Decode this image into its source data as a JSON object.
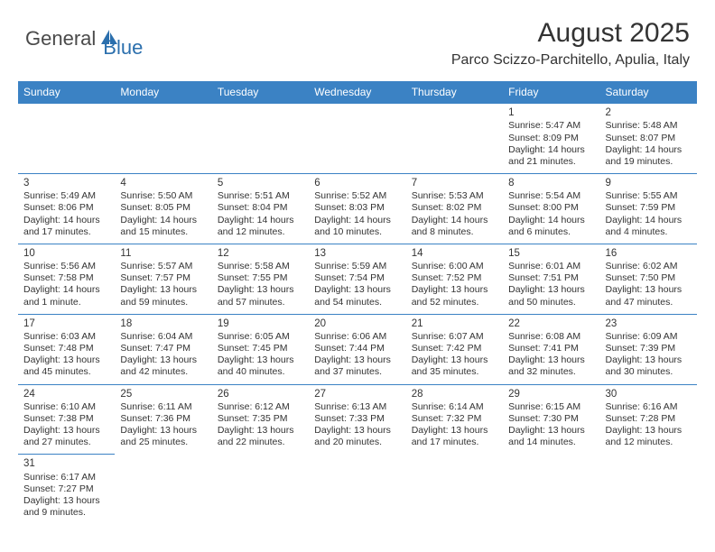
{
  "brand": {
    "word1": "General",
    "word2": "Blue",
    "word1_color": "#4a4a4a",
    "word2_color": "#2b6fad",
    "icon_fill": "#2b6fad"
  },
  "title": "August 2025",
  "location": "Parco Scizzo-Parchitello, Apulia, Italy",
  "colors": {
    "header_bg": "#3b82c4",
    "header_text": "#ffffff",
    "border": "#3b82c4",
    "body_text": "#333333",
    "page_bg": "#ffffff"
  },
  "weekdays": [
    "Sunday",
    "Monday",
    "Tuesday",
    "Wednesday",
    "Thursday",
    "Friday",
    "Saturday"
  ],
  "weeks": [
    [
      null,
      null,
      null,
      null,
      null,
      {
        "day": "1",
        "sunrise": "Sunrise: 5:47 AM",
        "sunset": "Sunset: 8:09 PM",
        "daylight1": "Daylight: 14 hours",
        "daylight2": "and 21 minutes."
      },
      {
        "day": "2",
        "sunrise": "Sunrise: 5:48 AM",
        "sunset": "Sunset: 8:07 PM",
        "daylight1": "Daylight: 14 hours",
        "daylight2": "and 19 minutes."
      }
    ],
    [
      {
        "day": "3",
        "sunrise": "Sunrise: 5:49 AM",
        "sunset": "Sunset: 8:06 PM",
        "daylight1": "Daylight: 14 hours",
        "daylight2": "and 17 minutes."
      },
      {
        "day": "4",
        "sunrise": "Sunrise: 5:50 AM",
        "sunset": "Sunset: 8:05 PM",
        "daylight1": "Daylight: 14 hours",
        "daylight2": "and 15 minutes."
      },
      {
        "day": "5",
        "sunrise": "Sunrise: 5:51 AM",
        "sunset": "Sunset: 8:04 PM",
        "daylight1": "Daylight: 14 hours",
        "daylight2": "and 12 minutes."
      },
      {
        "day": "6",
        "sunrise": "Sunrise: 5:52 AM",
        "sunset": "Sunset: 8:03 PM",
        "daylight1": "Daylight: 14 hours",
        "daylight2": "and 10 minutes."
      },
      {
        "day": "7",
        "sunrise": "Sunrise: 5:53 AM",
        "sunset": "Sunset: 8:02 PM",
        "daylight1": "Daylight: 14 hours",
        "daylight2": "and 8 minutes."
      },
      {
        "day": "8",
        "sunrise": "Sunrise: 5:54 AM",
        "sunset": "Sunset: 8:00 PM",
        "daylight1": "Daylight: 14 hours",
        "daylight2": "and 6 minutes."
      },
      {
        "day": "9",
        "sunrise": "Sunrise: 5:55 AM",
        "sunset": "Sunset: 7:59 PM",
        "daylight1": "Daylight: 14 hours",
        "daylight2": "and 4 minutes."
      }
    ],
    [
      {
        "day": "10",
        "sunrise": "Sunrise: 5:56 AM",
        "sunset": "Sunset: 7:58 PM",
        "daylight1": "Daylight: 14 hours",
        "daylight2": "and 1 minute."
      },
      {
        "day": "11",
        "sunrise": "Sunrise: 5:57 AM",
        "sunset": "Sunset: 7:57 PM",
        "daylight1": "Daylight: 13 hours",
        "daylight2": "and 59 minutes."
      },
      {
        "day": "12",
        "sunrise": "Sunrise: 5:58 AM",
        "sunset": "Sunset: 7:55 PM",
        "daylight1": "Daylight: 13 hours",
        "daylight2": "and 57 minutes."
      },
      {
        "day": "13",
        "sunrise": "Sunrise: 5:59 AM",
        "sunset": "Sunset: 7:54 PM",
        "daylight1": "Daylight: 13 hours",
        "daylight2": "and 54 minutes."
      },
      {
        "day": "14",
        "sunrise": "Sunrise: 6:00 AM",
        "sunset": "Sunset: 7:52 PM",
        "daylight1": "Daylight: 13 hours",
        "daylight2": "and 52 minutes."
      },
      {
        "day": "15",
        "sunrise": "Sunrise: 6:01 AM",
        "sunset": "Sunset: 7:51 PM",
        "daylight1": "Daylight: 13 hours",
        "daylight2": "and 50 minutes."
      },
      {
        "day": "16",
        "sunrise": "Sunrise: 6:02 AM",
        "sunset": "Sunset: 7:50 PM",
        "daylight1": "Daylight: 13 hours",
        "daylight2": "and 47 minutes."
      }
    ],
    [
      {
        "day": "17",
        "sunrise": "Sunrise: 6:03 AM",
        "sunset": "Sunset: 7:48 PM",
        "daylight1": "Daylight: 13 hours",
        "daylight2": "and 45 minutes."
      },
      {
        "day": "18",
        "sunrise": "Sunrise: 6:04 AM",
        "sunset": "Sunset: 7:47 PM",
        "daylight1": "Daylight: 13 hours",
        "daylight2": "and 42 minutes."
      },
      {
        "day": "19",
        "sunrise": "Sunrise: 6:05 AM",
        "sunset": "Sunset: 7:45 PM",
        "daylight1": "Daylight: 13 hours",
        "daylight2": "and 40 minutes."
      },
      {
        "day": "20",
        "sunrise": "Sunrise: 6:06 AM",
        "sunset": "Sunset: 7:44 PM",
        "daylight1": "Daylight: 13 hours",
        "daylight2": "and 37 minutes."
      },
      {
        "day": "21",
        "sunrise": "Sunrise: 6:07 AM",
        "sunset": "Sunset: 7:42 PM",
        "daylight1": "Daylight: 13 hours",
        "daylight2": "and 35 minutes."
      },
      {
        "day": "22",
        "sunrise": "Sunrise: 6:08 AM",
        "sunset": "Sunset: 7:41 PM",
        "daylight1": "Daylight: 13 hours",
        "daylight2": "and 32 minutes."
      },
      {
        "day": "23",
        "sunrise": "Sunrise: 6:09 AM",
        "sunset": "Sunset: 7:39 PM",
        "daylight1": "Daylight: 13 hours",
        "daylight2": "and 30 minutes."
      }
    ],
    [
      {
        "day": "24",
        "sunrise": "Sunrise: 6:10 AM",
        "sunset": "Sunset: 7:38 PM",
        "daylight1": "Daylight: 13 hours",
        "daylight2": "and 27 minutes."
      },
      {
        "day": "25",
        "sunrise": "Sunrise: 6:11 AM",
        "sunset": "Sunset: 7:36 PM",
        "daylight1": "Daylight: 13 hours",
        "daylight2": "and 25 minutes."
      },
      {
        "day": "26",
        "sunrise": "Sunrise: 6:12 AM",
        "sunset": "Sunset: 7:35 PM",
        "daylight1": "Daylight: 13 hours",
        "daylight2": "and 22 minutes."
      },
      {
        "day": "27",
        "sunrise": "Sunrise: 6:13 AM",
        "sunset": "Sunset: 7:33 PM",
        "daylight1": "Daylight: 13 hours",
        "daylight2": "and 20 minutes."
      },
      {
        "day": "28",
        "sunrise": "Sunrise: 6:14 AM",
        "sunset": "Sunset: 7:32 PM",
        "daylight1": "Daylight: 13 hours",
        "daylight2": "and 17 minutes."
      },
      {
        "day": "29",
        "sunrise": "Sunrise: 6:15 AM",
        "sunset": "Sunset: 7:30 PM",
        "daylight1": "Daylight: 13 hours",
        "daylight2": "and 14 minutes."
      },
      {
        "day": "30",
        "sunrise": "Sunrise: 6:16 AM",
        "sunset": "Sunset: 7:28 PM",
        "daylight1": "Daylight: 13 hours",
        "daylight2": "and 12 minutes."
      }
    ],
    [
      {
        "day": "31",
        "sunrise": "Sunrise: 6:17 AM",
        "sunset": "Sunset: 7:27 PM",
        "daylight1": "Daylight: 13 hours",
        "daylight2": "and 9 minutes."
      },
      null,
      null,
      null,
      null,
      null,
      null
    ]
  ]
}
